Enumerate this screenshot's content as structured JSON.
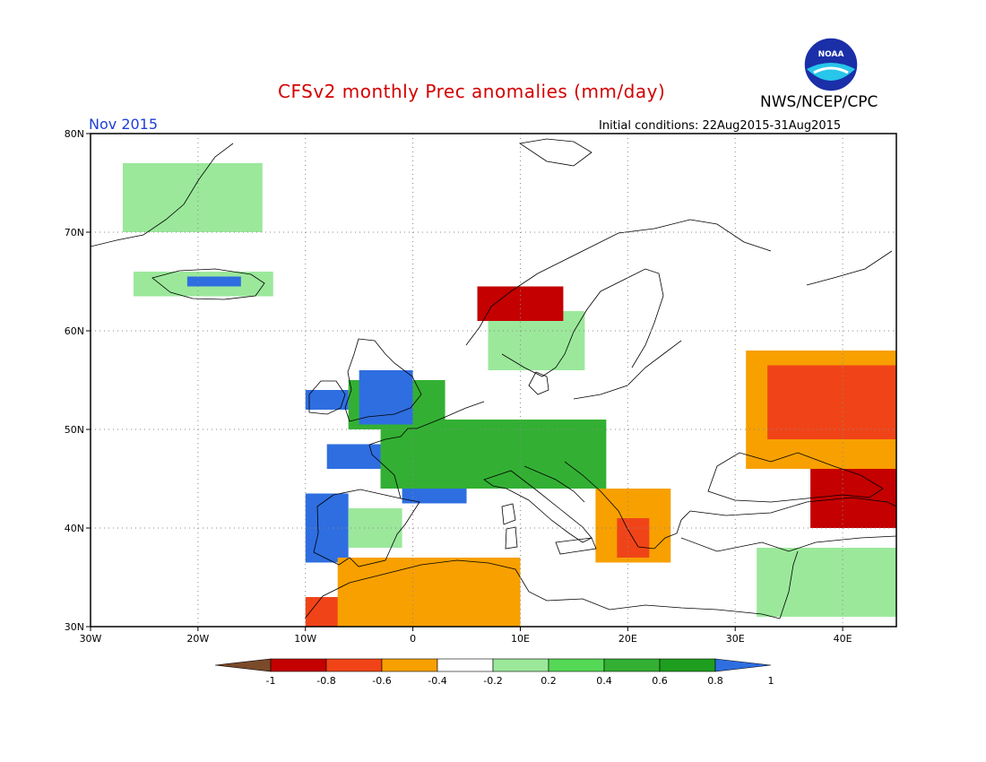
{
  "header": {
    "title": "CFSv2 monthly Prec anomalies (mm/day)",
    "agency": "NWS/NCEP/CPC",
    "month": "Nov 2015",
    "initial_conditions": "Initial conditions: 22Aug2015-31Aug2015",
    "logo_text": "NOAA"
  },
  "map": {
    "lon_range": [
      -30,
      45
    ],
    "lat_range": [
      30,
      80
    ],
    "lon_ticks": [
      {
        "value": -30,
        "label": "30W"
      },
      {
        "value": -20,
        "label": "20W"
      },
      {
        "value": -10,
        "label": "10W"
      },
      {
        "value": 0,
        "label": "0"
      },
      {
        "value": 10,
        "label": "10E"
      },
      {
        "value": 20,
        "label": "20E"
      },
      {
        "value": 30,
        "label": "30E"
      },
      {
        "value": 40,
        "label": "40E"
      }
    ],
    "lat_ticks": [
      {
        "value": 30,
        "label": "30N"
      },
      {
        "value": 40,
        "label": "40N"
      },
      {
        "value": 50,
        "label": "50N"
      },
      {
        "value": 60,
        "label": "60N"
      },
      {
        "value": 70,
        "label": "70N"
      },
      {
        "value": 80,
        "label": "80N"
      }
    ],
    "grid": "dotted"
  },
  "colorbar": {
    "labels": [
      "-1",
      "-0.8",
      "-0.6",
      "-0.4",
      "-0.2",
      "0.2",
      "0.4",
      "0.6",
      "0.8",
      "1"
    ],
    "colors": [
      "#7a4a2a",
      "#c40000",
      "#f04418",
      "#f7a000",
      "#ffffff",
      "#9be89b",
      "#55d855",
      "#33b033",
      "#1e9e1e",
      "#2e6ee0"
    ]
  },
  "chart_data": {
    "type": "heatmap",
    "variable": "Prec anomalies (mm/day)",
    "regions": [
      {
        "lon": [
          -8,
          -3
        ],
        "lat": [
          46,
          48.5
        ],
        "class": "blue"
      },
      {
        "lon": [
          -3,
          7
        ],
        "lat": [
          44,
          49
        ],
        "class": "blue"
      },
      {
        "lon": [
          -1,
          5
        ],
        "lat": [
          42.5,
          44
        ],
        "class": "blue"
      },
      {
        "lon": [
          -3,
          18
        ],
        "lat": [
          44,
          51
        ],
        "class": "green"
      },
      {
        "lon": [
          -6,
          3
        ],
        "lat": [
          50,
          55
        ],
        "class": "green"
      },
      {
        "lon": [
          -5,
          0
        ],
        "lat": [
          50.5,
          56
        ],
        "class": "blue"
      },
      {
        "lon": [
          -10,
          -6
        ],
        "lat": [
          52,
          54
        ],
        "class": "blue"
      },
      {
        "lon": [
          -10,
          -6
        ],
        "lat": [
          36.5,
          43.5
        ],
        "class": "blue"
      },
      {
        "lon": [
          -6,
          -1
        ],
        "lat": [
          38,
          42
        ],
        "class": "lightgreen"
      },
      {
        "lon": [
          7,
          13
        ],
        "lat": [
          57.5,
          59.5
        ],
        "class": "blue"
      },
      {
        "lon": [
          7,
          16
        ],
        "lat": [
          56,
          62
        ],
        "class": "lightgreen"
      },
      {
        "lon": [
          6,
          14
        ],
        "lat": [
          61,
          64.5
        ],
        "class": "darkred"
      },
      {
        "lon": [
          -26,
          -13
        ],
        "lat": [
          63.5,
          66
        ],
        "class": "lightgreen"
      },
      {
        "lon": [
          -21,
          -16
        ],
        "lat": [
          64.5,
          65.5
        ],
        "class": "blue"
      },
      {
        "lon": [
          -27,
          -14
        ],
        "lat": [
          70,
          77
        ],
        "class": "lightgreen"
      },
      {
        "lon": [
          31,
          45
        ],
        "lat": [
          46,
          58
        ],
        "class": "orange"
      },
      {
        "lon": [
          33,
          45
        ],
        "lat": [
          49,
          56.5
        ],
        "class": "red"
      },
      {
        "lon": [
          37,
          45
        ],
        "lat": [
          40,
          46
        ],
        "class": "darkred"
      },
      {
        "lon": [
          17,
          24
        ],
        "lat": [
          36.5,
          44
        ],
        "class": "orange"
      },
      {
        "lon": [
          19,
          22
        ],
        "lat": [
          37,
          41
        ],
        "class": "red"
      },
      {
        "lon": [
          -10,
          -5
        ],
        "lat": [
          30,
          33
        ],
        "class": "red"
      },
      {
        "lon": [
          -7,
          10
        ],
        "lat": [
          30,
          37
        ],
        "class": "orange"
      },
      {
        "lon": [
          32,
          45
        ],
        "lat": [
          31,
          38
        ],
        "class": "lightgreen"
      }
    ]
  }
}
